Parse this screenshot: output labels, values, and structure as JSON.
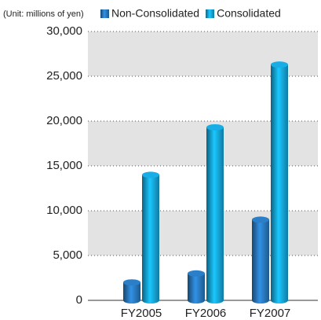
{
  "chart_data": {
    "type": "bar",
    "subtitle": "(Unit: millions of yen)",
    "categories": [
      "FY2005",
      "FY2006",
      "FY2007"
    ],
    "series": [
      {
        "name": "Non-Consolidated",
        "color": "#2b7fc8",
        "values": [
          2000,
          3000,
          9000
        ]
      },
      {
        "name": "Consolidated",
        "color": "#17aee8",
        "values": [
          14000,
          19300,
          26300
        ]
      }
    ],
    "ylim": [
      0,
      30000
    ],
    "yticks": [
      0,
      {
        "value": 5000,
        "label": "5,000"
      },
      {
        "value": 10000,
        "label": "10,000"
      },
      {
        "value": 15000,
        "label": "15,000"
      },
      {
        "value": 20000,
        "label": "20,000"
      },
      {
        "value": 25000,
        "label": "25,000"
      },
      {
        "value": 30000,
        "label": "30,000"
      }
    ],
    "grid": true
  }
}
